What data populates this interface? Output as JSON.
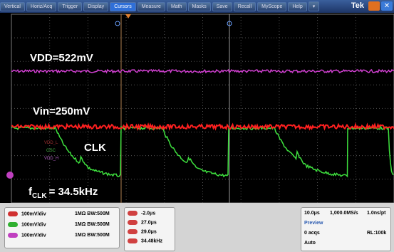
{
  "menu": [
    "Vertical",
    "Horiz/Acq",
    "Trigger",
    "Display",
    "Cursors",
    "Measure",
    "Math",
    "Masks",
    "Save",
    "Recall",
    "MyScope",
    "Help"
  ],
  "brand": "Tek",
  "annotations": {
    "vdd": "VDD=522mV",
    "vin": "Vin=250mV",
    "clk": "CLK",
    "fclk": {
      "symbol": "f",
      "subscript": "CLK",
      "value": "= 34.5kHz"
    },
    "legend": [
      "VDD_L",
      "OSC",
      "VDD_H"
    ]
  },
  "channels": [
    {
      "scale": "100mV/div",
      "impedance": "1MΩ",
      "bandwidth": "BW:500M"
    },
    {
      "scale": "100mV/div",
      "impedance": "1MΩ",
      "bandwidth": "BW:500M"
    },
    {
      "scale": "100mV/div",
      "impedance": "1MΩ",
      "bandwidth": "BW:500M"
    }
  ],
  "cursors": [
    "-2.0μs",
    "27.0μs",
    "29.0μs",
    "34.48kHz"
  ],
  "acquisition": {
    "timebase": "10.0μs",
    "sample_rate": "1,000.0MS/s",
    "resolution": "1.0ns/pt",
    "mode": "Preview",
    "acqs": "0 acqs",
    "record_length": "RL:100k",
    "trigger": "Auto"
  }
}
